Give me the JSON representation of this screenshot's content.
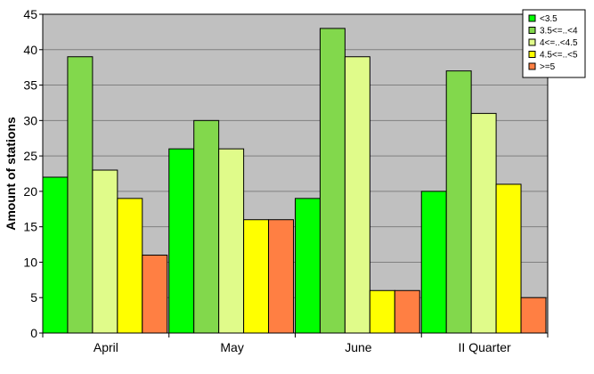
{
  "chart_data": {
    "type": "bar",
    "title": "",
    "xlabel": "",
    "ylabel": "Amount of stations",
    "ylim": [
      0,
      45
    ],
    "y_ticks": [
      0,
      5,
      10,
      15,
      20,
      25,
      30,
      35,
      40,
      45
    ],
    "grid": true,
    "legend_position": "top-right",
    "categories": [
      "April",
      "May",
      "June",
      "II Quarter"
    ],
    "series": [
      {
        "name": "<3.5",
        "color": "#00ff00",
        "values": [
          22,
          26,
          19,
          20
        ]
      },
      {
        "name": "3.5<=..<4",
        "color": "#82d84c",
        "values": [
          39,
          30,
          43,
          37
        ]
      },
      {
        "name": "4<=..<4.5",
        "color": "#e0fb8a",
        "values": [
          23,
          26,
          39,
          31
        ]
      },
      {
        "name": "4.5<=..<5",
        "color": "#ffff00",
        "values": [
          19,
          16,
          6,
          21
        ]
      },
      {
        "name": ">=5",
        "color": "#ff7f43",
        "values": [
          11,
          16,
          6,
          5
        ]
      }
    ],
    "plot_background": "#c0c0c0"
  }
}
